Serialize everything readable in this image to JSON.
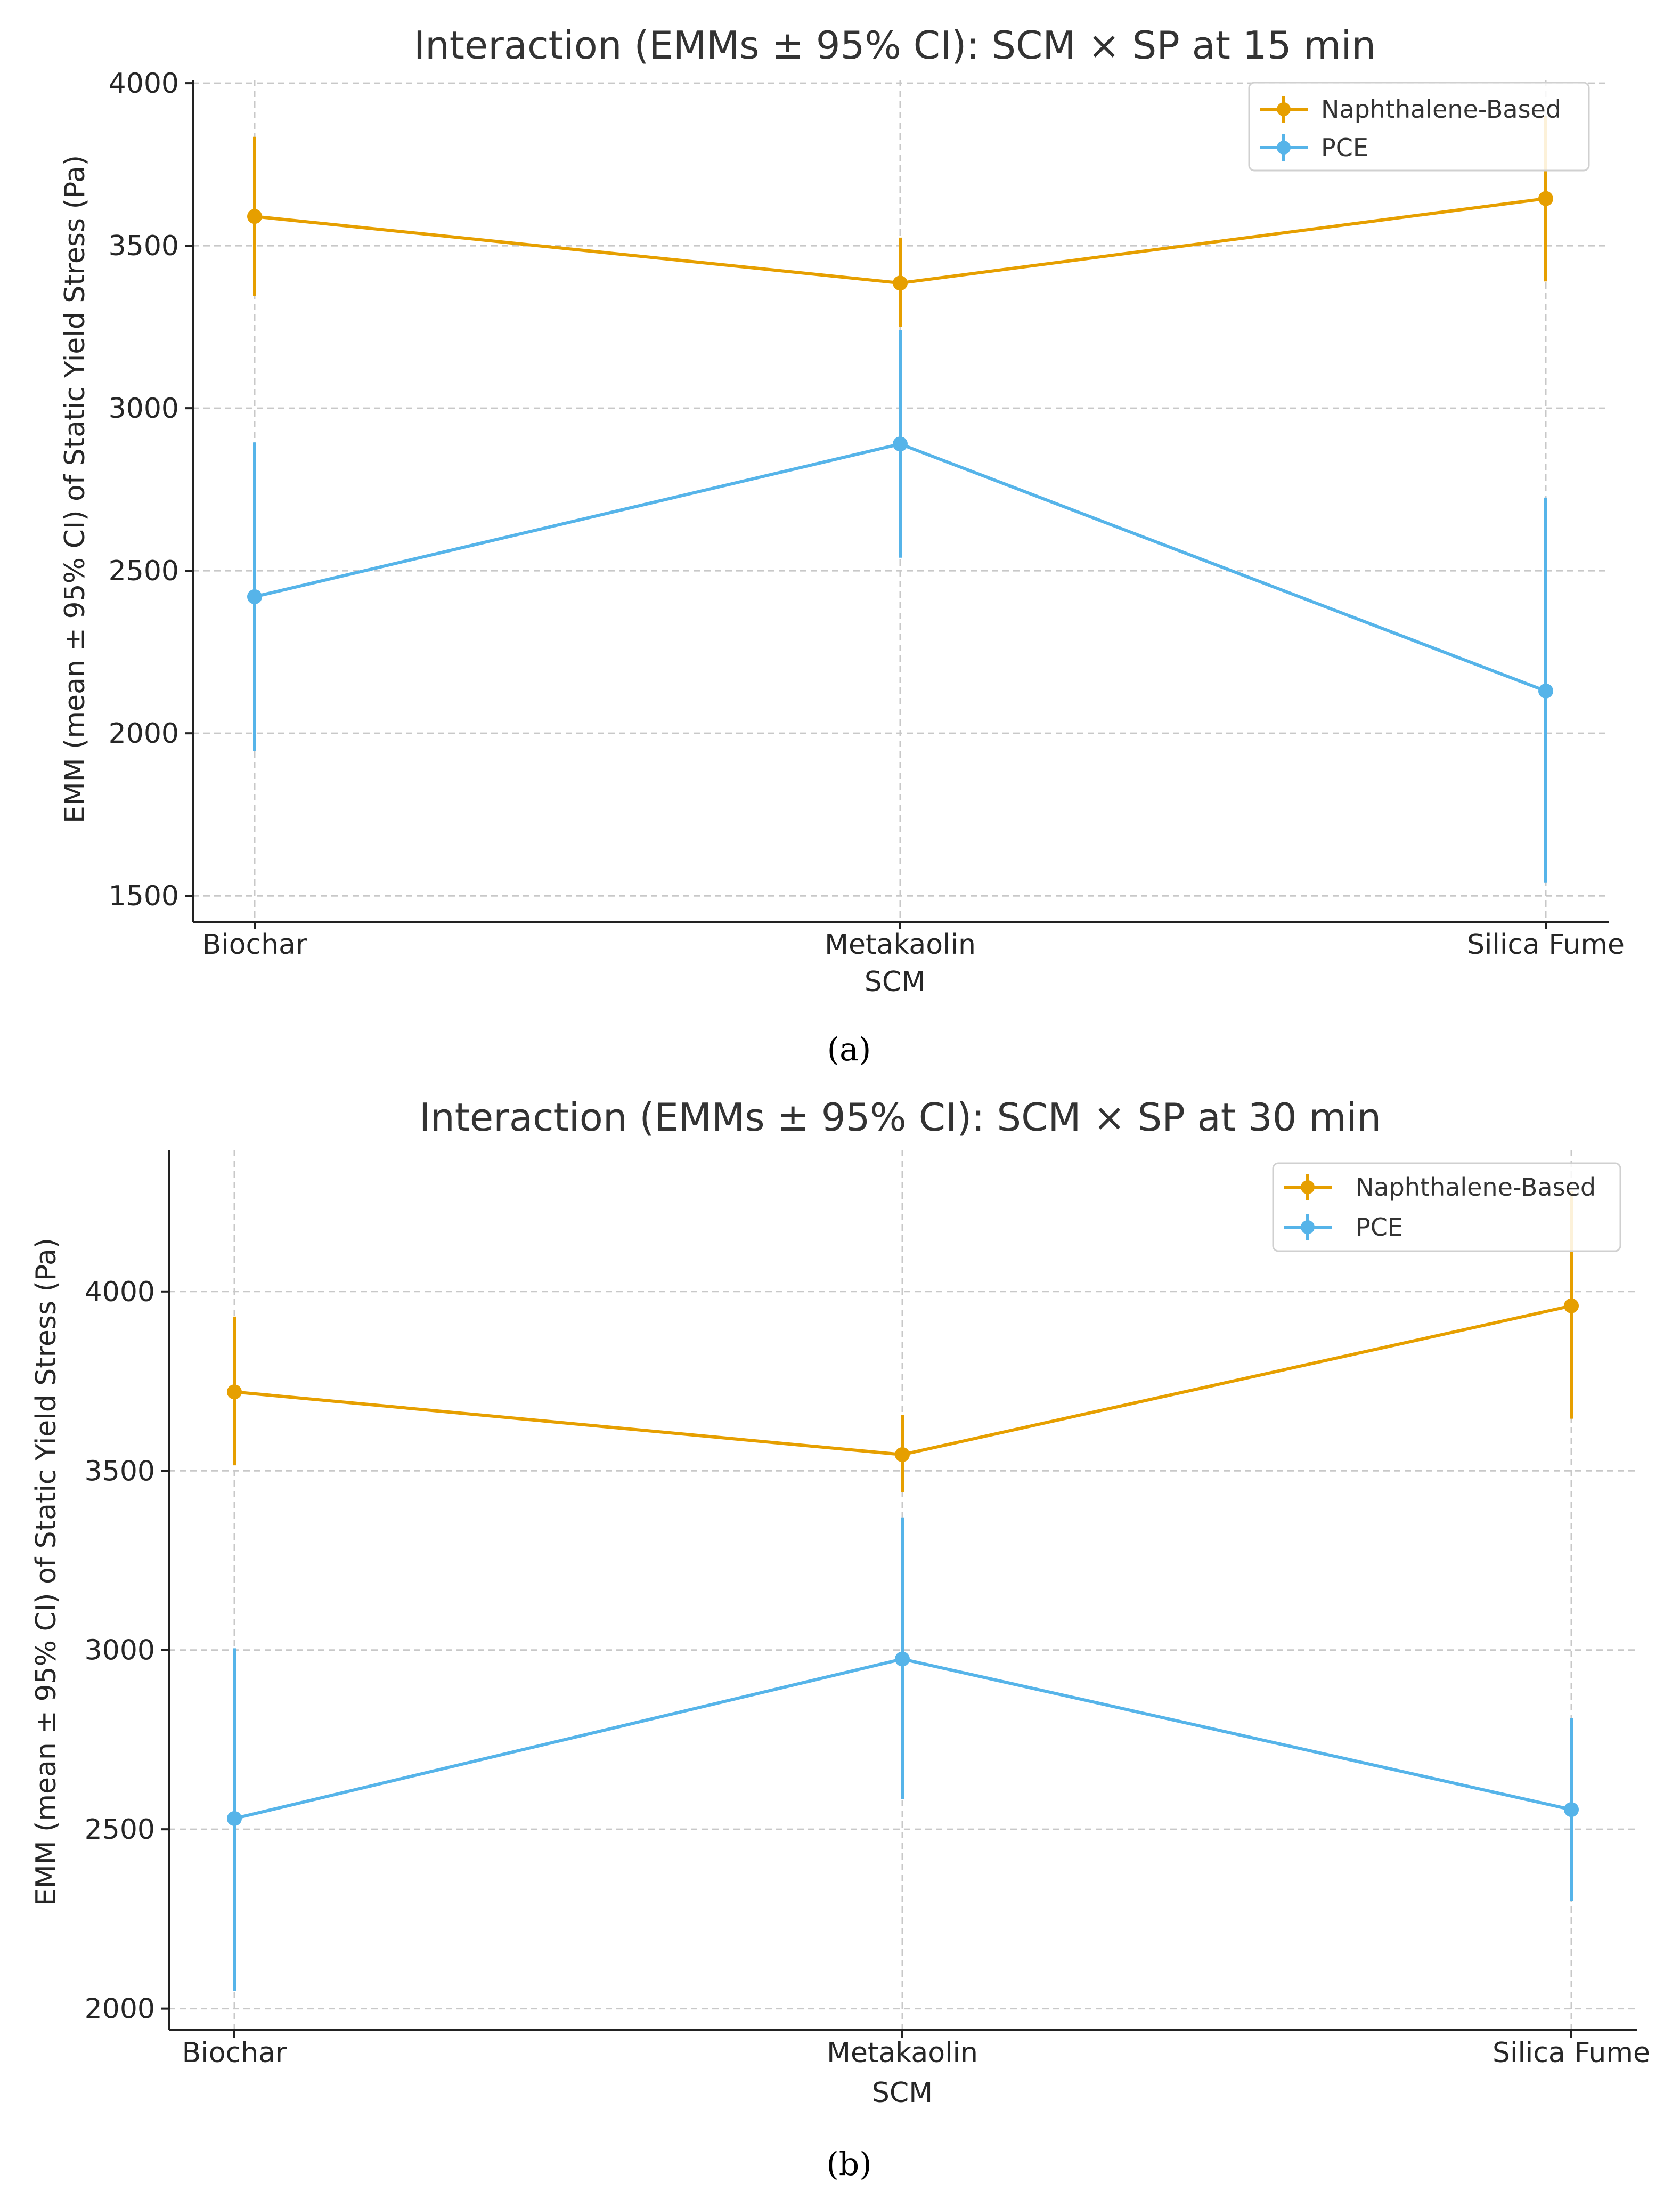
{
  "figure": {
    "captions": [
      "(a)",
      "(b)"
    ]
  },
  "colors": {
    "naphthalene": "#E69F00",
    "pce": "#56B4E9"
  },
  "chart_data": [
    {
      "type": "line",
      "title": "Interaction (EMMs ± 95% CI): SCM × SP at 15 min",
      "xlabel": "SCM",
      "ylabel": "EMM (mean ± 95% CI) of Static Yield Stress (Pa)",
      "categories": [
        "Biochar",
        "Metakaolin",
        "Silica Fume"
      ],
      "ylim": [
        1420,
        4010
      ],
      "yticks": [
        1500,
        2000,
        2500,
        3000,
        3500,
        4000
      ],
      "ytick_labels": [
        "1500",
        "2000",
        "2500",
        "3000",
        "3500",
        "4000"
      ],
      "grid": true,
      "legend_position": "top-right",
      "series": [
        {
          "name": "Naphthalene-Based",
          "color": "#E69F00",
          "values": [
            3590,
            3385,
            3645
          ],
          "ci_low": [
            3345,
            3250,
            3390
          ],
          "ci_high": [
            3835,
            3525,
            3900
          ]
        },
        {
          "name": "PCE",
          "color": "#56B4E9",
          "values": [
            2420,
            2890,
            2130
          ],
          "ci_low": [
            1945,
            2540,
            1540
          ],
          "ci_high": [
            2895,
            3240,
            2725
          ]
        }
      ],
      "caption": "(a)"
    },
    {
      "type": "line",
      "title": "Interaction (EMMs ± 95% CI): SCM × SP at 30 min",
      "xlabel": "SCM",
      "ylabel": "EMM (mean ± 95% CI) of Static Yield Stress (Pa)",
      "categories": [
        "Biochar",
        "Metakaolin",
        "Silica Fume"
      ],
      "ylim": [
        1940,
        4395
      ],
      "yticks": [
        2000,
        2500,
        3000,
        3500,
        4000
      ],
      "ytick_labels": [
        "2000",
        "2500",
        "3000",
        "3500",
        "4000"
      ],
      "grid": true,
      "legend_position": "top-right",
      "series": [
        {
          "name": "Naphthalene-Based",
          "color": "#E69F00",
          "values": [
            3720,
            3545,
            3960
          ],
          "ci_low": [
            3515,
            3440,
            3645
          ],
          "ci_high": [
            3930,
            3655,
            4280
          ]
        },
        {
          "name": "PCE",
          "color": "#56B4E9",
          "values": [
            2530,
            2975,
            2555
          ],
          "ci_low": [
            2050,
            2585,
            2300
          ],
          "ci_high": [
            3005,
            3370,
            2810
          ]
        }
      ],
      "caption": "(b)"
    }
  ]
}
